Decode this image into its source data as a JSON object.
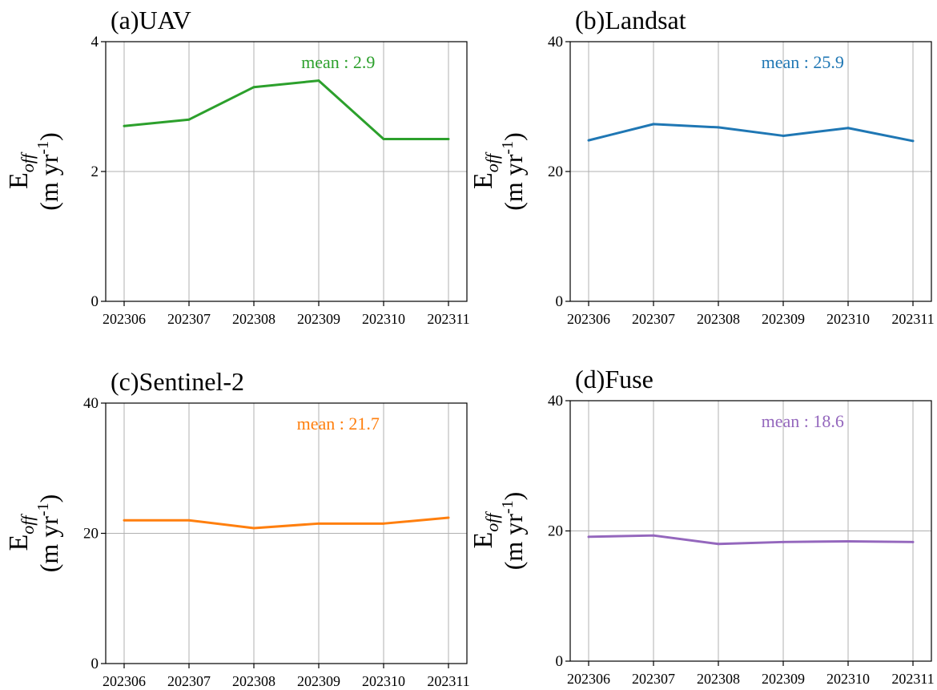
{
  "figure": {
    "ylabel_main": "E",
    "ylabel_sub": "off",
    "ylabel_unit_prefix": "(m yr",
    "ylabel_unit_exp": "-1",
    "ylabel_unit_suffix": ")"
  },
  "chart_data": [
    {
      "type": "line",
      "title": "(a)UAV",
      "categories": [
        "202306",
        "202307",
        "202308",
        "202309",
        "202310",
        "202311"
      ],
      "values": [
        2.7,
        2.8,
        3.3,
        3.4,
        2.5,
        2.5
      ],
      "ylim": [
        0,
        4
      ],
      "yticks": [
        "0",
        "2",
        "4"
      ],
      "annotation": "mean : 2.9",
      "color": "#2ca02c",
      "grid": true
    },
    {
      "type": "line",
      "title": "(b)Landsat",
      "categories": [
        "202306",
        "202307",
        "202308",
        "202309",
        "202310",
        "202311"
      ],
      "values": [
        24.8,
        27.3,
        26.8,
        25.5,
        26.7,
        24.7
      ],
      "ylim": [
        0,
        40
      ],
      "yticks": [
        "0",
        "20",
        "40"
      ],
      "annotation": "mean : 25.9",
      "color": "#1f77b4",
      "grid": true
    },
    {
      "type": "line",
      "title": "(c)Sentinel-2",
      "categories": [
        "202306",
        "202307",
        "202308",
        "202309",
        "202310",
        "202311"
      ],
      "values": [
        22.0,
        22.0,
        20.8,
        21.5,
        21.5,
        22.4
      ],
      "ylim": [
        0,
        40
      ],
      "yticks": [
        "0",
        "20",
        "40"
      ],
      "annotation": "mean : 21.7",
      "color": "#ff7f0e",
      "grid": true
    },
    {
      "type": "line",
      "title": "(d)Fuse",
      "categories": [
        "202306",
        "202307",
        "202308",
        "202309",
        "202310",
        "202311"
      ],
      "values": [
        19.1,
        19.3,
        18.0,
        18.3,
        18.4,
        18.3
      ],
      "ylim": [
        0,
        40
      ],
      "yticks": [
        "0",
        "20",
        "40"
      ],
      "annotation": "mean : 18.6",
      "color": "#9467bd",
      "grid": true
    }
  ]
}
